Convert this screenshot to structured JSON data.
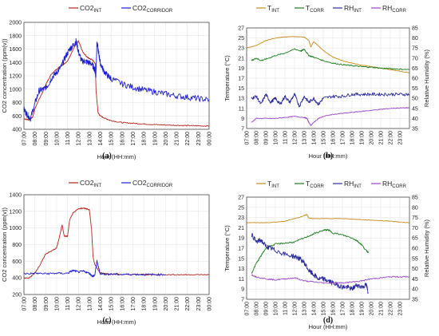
{
  "colors": {
    "co2_int": "#b0281e",
    "co2_corr": "#1f1fcf",
    "t_int": "#c88a18",
    "t_corr": "#1e7d1e",
    "rh_int": "#2b2b9a",
    "rh_corr": "#9a47c2"
  },
  "chart_data": [
    {
      "panel_label": "(a)",
      "type": "line",
      "xlabel": "Hour (HH:mm)",
      "ylabel": "CO2 concentration (ppm(v))",
      "x_ticks": [
        "07:00",
        "08:00",
        "09:00",
        "10:00",
        "11:00",
        "12:00",
        "13:00",
        "14:00",
        "15:00",
        "16:00",
        "17:00",
        "18:00",
        "19:00",
        "20:00",
        "21:00",
        "22:00",
        "23:00",
        "00:00"
      ],
      "xlim": [
        7,
        24
      ],
      "ylim": [
        400,
        2000
      ],
      "y_ticks": [
        400,
        600,
        800,
        1000,
        1200,
        1400,
        1600,
        1800,
        2000
      ],
      "grid": true,
      "legend_placement": "top",
      "legend": [
        {
          "base": "CO2",
          "sub": "INT",
          "color_key": "co2_int"
        },
        {
          "base": "CO2",
          "sub": "CORRIDOR",
          "color_key": "co2_corr"
        }
      ],
      "series": [
        {
          "color_key": "co2_int",
          "noise": 8,
          "x": [
            7.0,
            7.4,
            7.8,
            8.0,
            8.3,
            8.7,
            9.0,
            9.5,
            10.0,
            10.5,
            11.0,
            11.3,
            11.6,
            12.0,
            12.4,
            12.8,
            13.0,
            13.3,
            13.55,
            13.62,
            13.8,
            14.0,
            14.5,
            15,
            16,
            17,
            18,
            19,
            20,
            21,
            22,
            23,
            24
          ],
          "y": [
            560,
            540,
            580,
            700,
            820,
            950,
            1070,
            1220,
            1300,
            1360,
            1420,
            1520,
            1620,
            1720,
            1560,
            1480,
            1460,
            1440,
            1380,
            980,
            650,
            600,
            560,
            530,
            500,
            490,
            480,
            470,
            465,
            460,
            455,
            452,
            450
          ]
        },
        {
          "color_key": "co2_corr",
          "noise": 45,
          "x": [
            7.0,
            7.3,
            7.6,
            8.0,
            8.4,
            8.8,
            9.2,
            9.6,
            10.0,
            10.4,
            10.8,
            11.2,
            11.5,
            11.8,
            12.0,
            12.3,
            12.6,
            12.9,
            13.2,
            13.5,
            13.6,
            13.7,
            13.85,
            14.0,
            14.3,
            14.7,
            15,
            16,
            17,
            18,
            19,
            20,
            21,
            22,
            23,
            24
          ],
          "y": [
            700,
            620,
            560,
            780,
            980,
            1000,
            1060,
            1180,
            1250,
            1330,
            1480,
            1600,
            1650,
            1720,
            1560,
            1420,
            1420,
            1400,
            1380,
            1300,
            1200,
            1700,
            1550,
            1400,
            1280,
            1200,
            1160,
            1080,
            1030,
            990,
            960,
            930,
            900,
            880,
            860,
            840
          ]
        }
      ]
    },
    {
      "panel_label": "(b)",
      "type": "line",
      "xlabel": "Hour (HH:mm)",
      "ylabel": "Temperature (°C)",
      "ylabel_right": "Relative Humidity (%)",
      "x_ticks": [
        "07:00",
        "08:00",
        "09:00",
        "10:00",
        "11:00",
        "12:00",
        "13:00",
        "14:00",
        "15:00",
        "16:00",
        "17:00",
        "18:00",
        "19:00",
        "20:00",
        "21:00",
        "22:00",
        "23:00"
      ],
      "xlim": [
        7,
        24
      ],
      "ylim": [
        7,
        27
      ],
      "y_ticks": [
        7,
        9,
        11,
        13,
        15,
        17,
        19,
        21,
        23,
        25,
        27
      ],
      "ylim_right": [
        35,
        85
      ],
      "y_ticks_right": [
        35,
        40,
        45,
        50,
        55,
        60,
        65,
        70,
        75,
        80,
        85
      ],
      "grid": true,
      "legend_placement": "top",
      "legend": [
        {
          "base": "T",
          "sub": "INT",
          "color_key": "t_int"
        },
        {
          "base": "T",
          "sub": "CORR",
          "color_key": "t_corr"
        },
        {
          "base": "RH",
          "sub": "INT",
          "color_key": "rh_int"
        },
        {
          "base": "RH",
          "sub": "CORR",
          "color_key": "rh_corr"
        }
      ],
      "series": [
        {
          "color_key": "t_int",
          "axis": "left",
          "noise": 0.05,
          "x": [
            7,
            8,
            9,
            10,
            11,
            12,
            13,
            13.5,
            13.7,
            14,
            15,
            16,
            17,
            18,
            19,
            20,
            21,
            22,
            23,
            24
          ],
          "y": [
            23,
            23.5,
            24.5,
            25,
            25.2,
            25.3,
            25.2,
            24.5,
            23.2,
            24.3,
            22.5,
            21.2,
            20.5,
            20,
            19.6,
            19.3,
            19,
            18.7,
            18.4,
            18.1
          ]
        },
        {
          "color_key": "t_corr",
          "axis": "left",
          "noise": 0.12,
          "x": [
            7.5,
            8,
            8.5,
            9,
            10,
            11,
            12,
            12.7,
            13,
            13.5,
            14,
            15,
            16,
            17,
            18,
            19,
            20,
            21,
            22,
            23,
            24
          ],
          "y": [
            20.5,
            21,
            20.5,
            20.8,
            21.5,
            22,
            22.8,
            22.4,
            22.8,
            21.5,
            21.2,
            20.5,
            20,
            19.7,
            19.5,
            19.3,
            19.2,
            19,
            18.9,
            18.8,
            18.7
          ]
        },
        {
          "color_key": "rh_int",
          "axis": "right",
          "noise": 0.8,
          "x": [
            7.5,
            8,
            8.5,
            9,
            9.5,
            10,
            10.5,
            11,
            11.5,
            12,
            12.5,
            13,
            13.5,
            14,
            14.5,
            15,
            16,
            17,
            18,
            19,
            20,
            21,
            22,
            23,
            24
          ],
          "y": [
            50,
            51,
            47,
            52,
            48,
            50,
            47,
            51,
            48,
            52,
            46,
            51,
            48,
            50,
            47,
            50,
            51,
            51,
            52,
            52,
            52,
            52,
            52,
            52,
            52
          ]
        },
        {
          "color_key": "rh_corr",
          "axis": "right",
          "noise": 0.2,
          "x": [
            7.5,
            8,
            9,
            10,
            11,
            12,
            13,
            13.3,
            13.5,
            13.7,
            14,
            14.5,
            15,
            16,
            17,
            18,
            19,
            20,
            21,
            22,
            23,
            24
          ],
          "y": [
            38,
            40,
            40,
            40,
            40.5,
            41,
            40.5,
            40,
            38,
            36.5,
            38,
            40,
            41,
            42,
            42.5,
            43,
            43.5,
            44,
            44.5,
            45,
            45.2,
            45.3
          ]
        }
      ]
    },
    {
      "panel_label": "(c)",
      "type": "line",
      "xlabel": "Hour (HH:mm)",
      "ylabel": "CO2 concentration (ppm(v))",
      "x_ticks": [
        "07:00",
        "08:00",
        "09:00",
        "10:00",
        "11:00",
        "12:00",
        "13:00",
        "14:00",
        "15:00",
        "16:00",
        "17:00",
        "18:00",
        "19:00",
        "20:00",
        "21:00",
        "22:00",
        "23:00",
        "00:00"
      ],
      "xlim": [
        7,
        24
      ],
      "ylim": [
        200,
        1400
      ],
      "y_ticks": [
        200,
        400,
        600,
        800,
        1000,
        1200,
        1400
      ],
      "grid": true,
      "legend_placement": "top",
      "legend": [
        {
          "base": "CO2",
          "sub": "INT",
          "color_key": "co2_int"
        },
        {
          "base": "CO2",
          "sub": "CORRIDOR",
          "color_key": "co2_corr"
        }
      ],
      "series": [
        {
          "color_key": "co2_int",
          "noise": 6,
          "x": [
            7,
            7.5,
            8,
            8.5,
            9,
            9.5,
            10,
            10.2,
            10.5,
            10.7,
            11,
            11.2,
            11.5,
            12,
            12.5,
            13,
            13.2,
            13.35,
            13.5,
            13.8,
            14,
            14.5,
            15,
            16,
            17,
            18,
            19,
            20,
            21,
            22,
            23,
            24
          ],
          "y": [
            395,
            400,
            460,
            560,
            690,
            720,
            760,
            860,
            1040,
            900,
            900,
            1100,
            1180,
            1230,
            1240,
            1220,
            1000,
            650,
            560,
            500,
            460,
            450,
            445,
            440,
            440,
            440,
            438,
            438,
            438,
            438,
            438,
            438
          ]
        },
        {
          "color_key": "co2_corr",
          "noise": 12,
          "x": [
            7,
            8,
            9,
            10,
            11,
            11.5,
            12,
            12.5,
            13,
            13.3,
            13.5,
            13.7,
            14,
            14.5,
            15,
            16,
            17,
            18,
            19,
            20
          ],
          "y": [
            450,
            455,
            450,
            455,
            455,
            490,
            470,
            480,
            455,
            420,
            430,
            600,
            450,
            445,
            445,
            442,
            442,
            440,
            440,
            440
          ]
        }
      ]
    },
    {
      "panel_label": "(d)",
      "type": "line",
      "xlabel": "Hour (HH:mm)",
      "ylabel": "Temperature (°C)",
      "ylabel_right": "Relative Humidity (%)",
      "x_ticks": [
        "07:00",
        "08:00",
        "09:00",
        "10:00",
        "11:00",
        "12:00",
        "13:00",
        "14:00",
        "15:00",
        "16:00",
        "17:00",
        "18:00",
        "19:00",
        "20:00",
        "21:00",
        "22:00",
        "23:00"
      ],
      "xlim": [
        7,
        24
      ],
      "ylim": [
        7,
        27
      ],
      "y_ticks": [
        7,
        9,
        11,
        13,
        15,
        17,
        19,
        21,
        23,
        25,
        27
      ],
      "ylim_right": [
        35,
        85
      ],
      "y_ticks_right": [
        35,
        40,
        45,
        50,
        55,
        60,
        65,
        70,
        75,
        80,
        85
      ],
      "grid": true,
      "legend_placement": "top",
      "legend": [
        {
          "base": "T",
          "sub": "INT",
          "color_key": "t_int"
        },
        {
          "base": "T",
          "sub": "CORR",
          "color_key": "t_corr"
        },
        {
          "base": "RH",
          "sub": "INT",
          "color_key": "rh_int"
        },
        {
          "base": "RH",
          "sub": "CORR",
          "color_key": "rh_corr"
        }
      ],
      "series": [
        {
          "color_key": "t_int",
          "axis": "left",
          "noise": 0.05,
          "x": [
            7,
            8,
            9,
            10,
            11,
            12,
            12.5,
            13,
            13.3,
            13.5,
            14,
            15,
            16,
            17,
            18,
            19,
            20,
            21,
            22,
            23,
            24
          ],
          "y": [
            22,
            22,
            22,
            22.1,
            22.3,
            22.8,
            23,
            23.4,
            23.6,
            22.9,
            22.8,
            22.8,
            22.8,
            22.8,
            22.7,
            22.6,
            22.5,
            22.4,
            22.3,
            22.1,
            22
          ]
        },
        {
          "color_key": "t_corr",
          "axis": "left",
          "noise": 0.15,
          "x": [
            7.5,
            8,
            8.5,
            9,
            10,
            11,
            12,
            13,
            14,
            15,
            15.5,
            16,
            17,
            18,
            18.5,
            19,
            19.5,
            19.7
          ],
          "y": [
            12,
            14,
            15.5,
            17,
            17.8,
            18,
            18.2,
            19,
            19.8,
            20.5,
            20.6,
            20,
            19.6,
            19,
            18.5,
            17.7,
            16.5,
            16.2
          ]
        },
        {
          "color_key": "rh_int",
          "axis": "right",
          "noise": 1.2,
          "x": [
            7.5,
            8,
            8.5,
            9,
            9.5,
            10,
            11,
            12,
            12.5,
            13,
            13.5,
            14,
            14.5,
            15,
            15.5,
            16,
            16.5,
            17,
            17.5,
            18,
            18.5,
            19,
            19.5,
            19.7
          ],
          "y": [
            67,
            63,
            64,
            61,
            60,
            59,
            57,
            56,
            55,
            53,
            49,
            47,
            45,
            45,
            44,
            43,
            42,
            41,
            41,
            40,
            42,
            41,
            42,
            38
          ]
        },
        {
          "color_key": "rh_corr",
          "axis": "right",
          "noise": 0.3,
          "x": [
            7.5,
            8,
            9,
            10,
            11,
            12,
            13,
            14,
            15,
            16,
            17,
            18,
            19,
            20,
            21,
            22,
            23,
            24
          ],
          "y": [
            47,
            46,
            45,
            44.5,
            45,
            45.5,
            44,
            43.5,
            43,
            43,
            43,
            43.5,
            44,
            45,
            45.5,
            46,
            46,
            46
          ]
        }
      ]
    }
  ]
}
